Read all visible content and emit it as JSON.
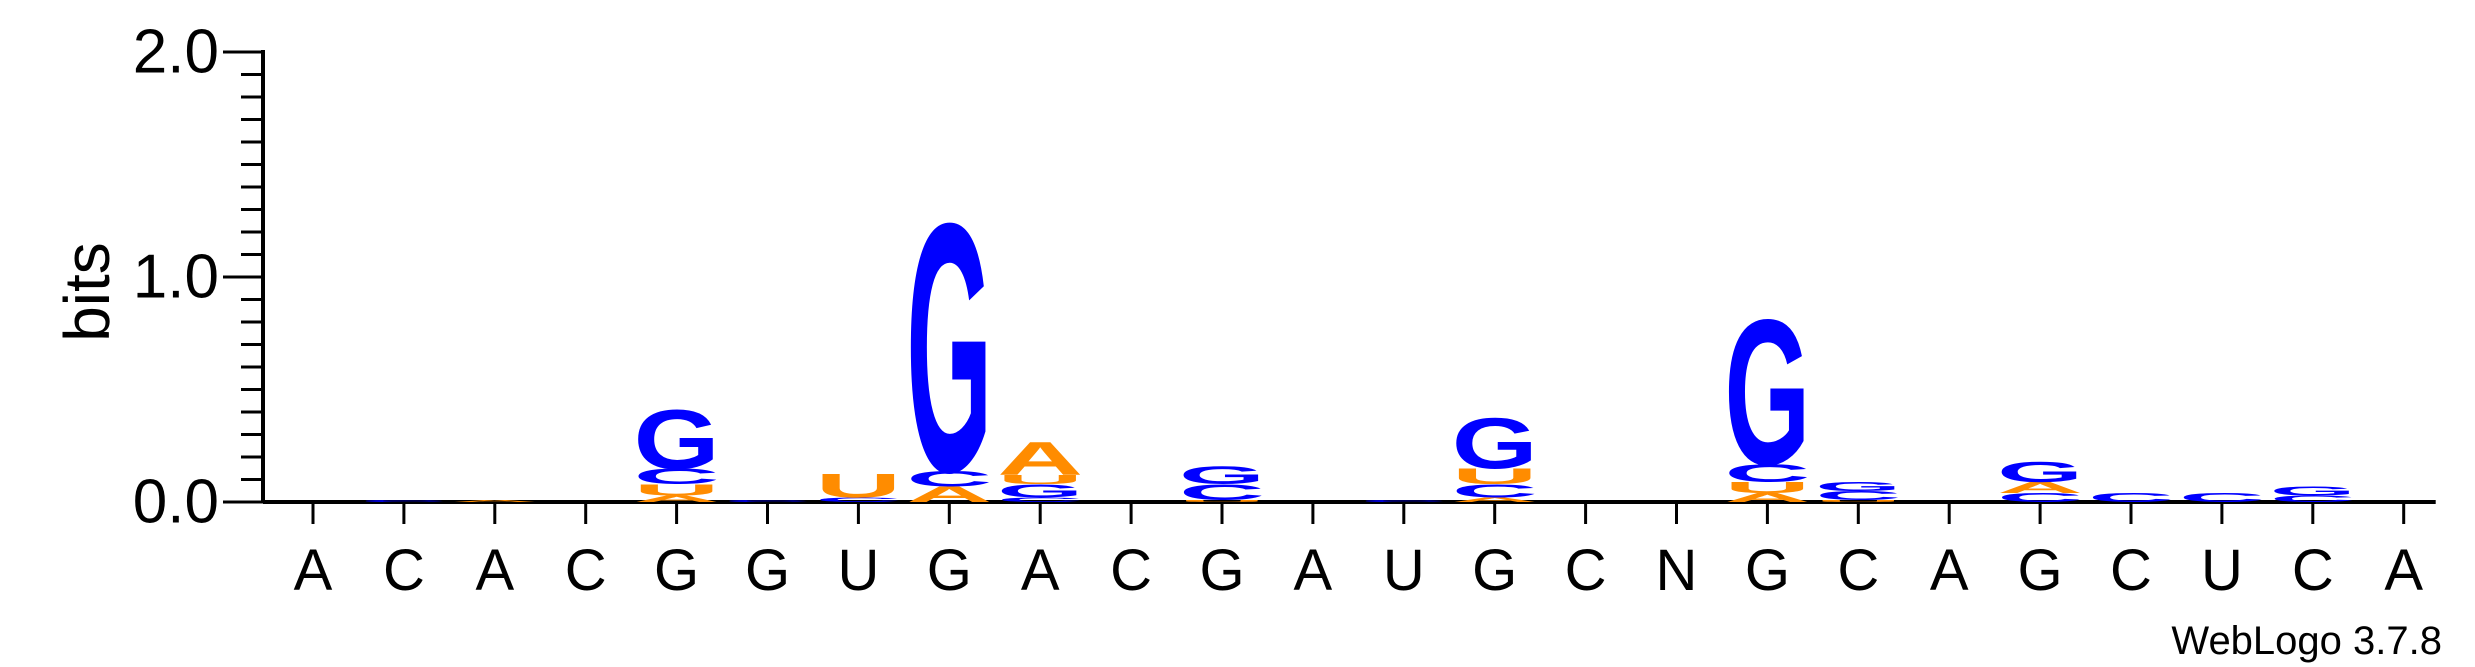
{
  "chart_data": {
    "type": "sequence-logo",
    "ylabel": "bits",
    "ylim": [
      0,
      2.0
    ],
    "yticks": [
      {
        "value": 0.0,
        "label": "0.0"
      },
      {
        "value": 1.0,
        "label": "1.0"
      },
      {
        "value": 2.0,
        "label": "2.0"
      }
    ],
    "x_labels": [
      "A",
      "C",
      "A",
      "C",
      "G",
      "G",
      "U",
      "G",
      "A",
      "C",
      "G",
      "A",
      "U",
      "G",
      "C",
      "N",
      "G",
      "C",
      "A",
      "G",
      "C",
      "U",
      "C",
      "A"
    ],
    "colors": {
      "G": "#0000ff",
      "C": "#0000ff",
      "A": "#ff8c00",
      "U": "#ff8c00"
    },
    "positions": [
      {
        "label": "A",
        "stack": []
      },
      {
        "label": "C",
        "stack": [
          {
            "letter": "C",
            "height": 0.01
          }
        ]
      },
      {
        "label": "A",
        "stack": [
          {
            "letter": "A",
            "height": 0.01
          }
        ]
      },
      {
        "label": "C",
        "stack": []
      },
      {
        "label": "G",
        "stack": [
          {
            "letter": "A",
            "height": 0.03
          },
          {
            "letter": "U",
            "height": 0.05
          },
          {
            "letter": "C",
            "height": 0.07
          },
          {
            "letter": "G",
            "height": 0.27
          }
        ]
      },
      {
        "label": "G",
        "stack": [
          {
            "letter": "C",
            "height": 0.01
          }
        ]
      },
      {
        "label": "U",
        "stack": [
          {
            "letter": "C",
            "height": 0.02
          },
          {
            "letter": "U",
            "height": 0.11
          }
        ]
      },
      {
        "label": "G",
        "stack": [
          {
            "letter": "A",
            "height": 0.07
          },
          {
            "letter": "C",
            "height": 0.07
          },
          {
            "letter": "G",
            "height": 1.13
          }
        ]
      },
      {
        "label": "A",
        "stack": [
          {
            "letter": "C",
            "height": 0.02
          },
          {
            "letter": "G",
            "height": 0.06
          },
          {
            "letter": "U",
            "height": 0.04
          },
          {
            "letter": "A",
            "height": 0.15
          }
        ]
      },
      {
        "label": "C",
        "stack": []
      },
      {
        "label": "G",
        "stack": [
          {
            "letter": "U",
            "height": 0.01
          },
          {
            "letter": "C",
            "height": 0.07
          },
          {
            "letter": "G",
            "height": 0.08
          }
        ]
      },
      {
        "label": "A",
        "stack": []
      },
      {
        "label": "U",
        "stack": [
          {
            "letter": "C",
            "height": 0.01
          }
        ]
      },
      {
        "label": "G",
        "stack": [
          {
            "letter": "A",
            "height": 0.02
          },
          {
            "letter": "C",
            "height": 0.06
          },
          {
            "letter": "U",
            "height": 0.07
          },
          {
            "letter": "G",
            "height": 0.23
          }
        ]
      },
      {
        "label": "C",
        "stack": []
      },
      {
        "label": "N",
        "stack": []
      },
      {
        "label": "G",
        "stack": [
          {
            "letter": "A",
            "height": 0.04
          },
          {
            "letter": "U",
            "height": 0.05
          },
          {
            "letter": "C",
            "height": 0.08
          },
          {
            "letter": "G",
            "height": 0.66
          }
        ]
      },
      {
        "label": "C",
        "stack": [
          {
            "letter": "U",
            "height": 0.01
          },
          {
            "letter": "C",
            "height": 0.04
          },
          {
            "letter": "G",
            "height": 0.04
          }
        ]
      },
      {
        "label": "A",
        "stack": []
      },
      {
        "label": "G",
        "stack": [
          {
            "letter": "C",
            "height": 0.04
          },
          {
            "letter": "A",
            "height": 0.05
          },
          {
            "letter": "G",
            "height": 0.09
          }
        ]
      },
      {
        "label": "C",
        "stack": [
          {
            "letter": "C",
            "height": 0.04
          }
        ]
      },
      {
        "label": "U",
        "stack": [
          {
            "letter": "C",
            "height": 0.04
          }
        ]
      },
      {
        "label": "C",
        "stack": [
          {
            "letter": "C",
            "height": 0.03
          },
          {
            "letter": "G",
            "height": 0.04
          }
        ]
      },
      {
        "label": "A",
        "stack": []
      }
    ]
  },
  "credit": "WebLogo 3.7.8"
}
